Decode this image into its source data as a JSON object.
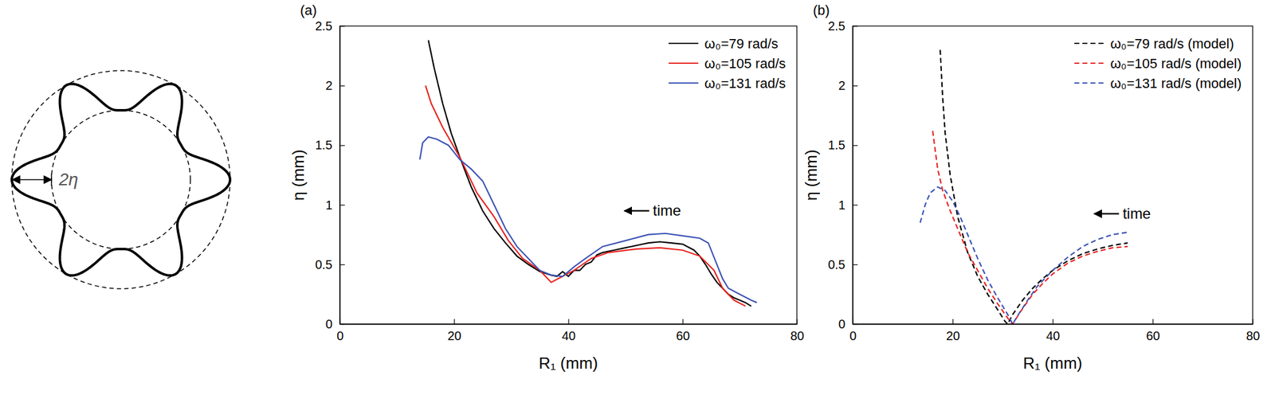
{
  "diagram": {
    "label": "2η"
  },
  "chart_data": [
    {
      "type": "line",
      "panel": "(a)",
      "x_label": "R₁ (mm)",
      "y_label": "η (mm)",
      "xlim": [
        0,
        80
      ],
      "xticks": [
        0,
        20,
        40,
        60,
        80
      ],
      "ylim": [
        0,
        2.5
      ],
      "yticks": [
        0,
        0.5,
        1,
        1.5,
        2,
        2.5
      ],
      "grid": false,
      "legend": "upper right",
      "annotations": [
        {
          "text": "time"
        }
      ],
      "series": [
        {
          "name": "ω₀=79 rad/s",
          "color": "#000000",
          "line_style": "solid",
          "x": [
            15.5,
            16.5,
            18,
            19.5,
            21,
            23,
            25,
            27,
            29,
            31,
            33,
            35,
            37,
            38,
            39,
            40,
            41,
            42,
            43,
            44,
            45,
            46,
            48,
            50,
            52,
            54,
            56,
            58,
            60,
            62,
            63,
            64,
            65,
            66,
            67,
            68,
            69,
            70,
            71,
            72
          ],
          "values": [
            2.38,
            2.15,
            1.85,
            1.6,
            1.4,
            1.15,
            0.95,
            0.8,
            0.68,
            0.57,
            0.5,
            0.44,
            0.41,
            0.4,
            0.44,
            0.4,
            0.45,
            0.45,
            0.5,
            0.52,
            0.58,
            0.6,
            0.62,
            0.64,
            0.66,
            0.68,
            0.69,
            0.68,
            0.67,
            0.62,
            0.57,
            0.5,
            0.42,
            0.35,
            0.3,
            0.25,
            0.22,
            0.2,
            0.18,
            0.15
          ]
        },
        {
          "name": "ω₀=105 rad/s",
          "color": "#e8231f",
          "line_style": "solid",
          "x": [
            15,
            16,
            18,
            21,
            24,
            27,
            29.5,
            32,
            35,
            37,
            39,
            41,
            44,
            47,
            52,
            56,
            60,
            63,
            65.5,
            67,
            69,
            71
          ],
          "values": [
            2.0,
            1.85,
            1.65,
            1.4,
            1.1,
            0.9,
            0.7,
            0.55,
            0.45,
            0.35,
            0.4,
            0.45,
            0.55,
            0.6,
            0.63,
            0.64,
            0.62,
            0.57,
            0.45,
            0.3,
            0.2,
            0.15
          ]
        },
        {
          "name": "ω₀=131 rad/s",
          "color": "#3a52b4",
          "line_style": "solid",
          "x": [
            14,
            14.5,
            15.5,
            17,
            19,
            21,
            23,
            25,
            27,
            29,
            31,
            33,
            35,
            37,
            39,
            41,
            43,
            46,
            50,
            54,
            57,
            60,
            63,
            64.5,
            66,
            67,
            68,
            70,
            72,
            73
          ],
          "values": [
            1.38,
            1.52,
            1.57,
            1.55,
            1.5,
            1.38,
            1.3,
            1.2,
            1.0,
            0.8,
            0.65,
            0.55,
            0.45,
            0.41,
            0.4,
            0.48,
            0.55,
            0.65,
            0.7,
            0.75,
            0.76,
            0.74,
            0.72,
            0.68,
            0.5,
            0.38,
            0.3,
            0.25,
            0.2,
            0.18
          ]
        }
      ]
    },
    {
      "type": "line",
      "panel": "(b)",
      "x_label": "R₁ (mm)",
      "y_label": "η (mm)",
      "xlim": [
        0,
        80
      ],
      "xticks": [
        0,
        20,
        40,
        60,
        80
      ],
      "ylim": [
        0,
        2.5
      ],
      "yticks": [
        0,
        0.5,
        1,
        1.5,
        2,
        2.5
      ],
      "grid": false,
      "legend": "upper right",
      "annotations": [
        {
          "text": "time"
        }
      ],
      "series": [
        {
          "name": "ω₀=79 rad/s (model)",
          "color": "#000000",
          "line_style": "dashed",
          "x": [
            17.5,
            18,
            18.5,
            19.5,
            21,
            23,
            25,
            27,
            29,
            30.5,
            31,
            32,
            34,
            36,
            38,
            40,
            43,
            46,
            49,
            52,
            55
          ],
          "values": [
            2.3,
            1.9,
            1.6,
            1.25,
            0.9,
            0.6,
            0.4,
            0.25,
            0.12,
            0.02,
            0.0,
            0.08,
            0.2,
            0.3,
            0.38,
            0.45,
            0.53,
            0.59,
            0.63,
            0.66,
            0.68
          ]
        },
        {
          "name": "ω₀=105 rad/s (model)",
          "color": "#e8231f",
          "line_style": "dashed",
          "x": [
            16,
            17,
            18,
            19.5,
            21,
            23,
            25,
            27,
            29,
            31,
            32,
            33.5,
            36,
            38,
            40,
            43,
            46,
            49,
            52,
            55
          ],
          "values": [
            1.62,
            1.3,
            1.12,
            0.95,
            0.8,
            0.6,
            0.45,
            0.3,
            0.17,
            0.05,
            0.0,
            0.1,
            0.25,
            0.34,
            0.42,
            0.51,
            0.57,
            0.61,
            0.64,
            0.65
          ]
        },
        {
          "name": "ω₀=131 rad/s (model)",
          "color": "#3a52b4",
          "line_style": "dashed",
          "x": [
            13.5,
            14.5,
            15.5,
            17,
            18.5,
            20,
            21.5,
            23,
            25,
            27,
            29,
            31,
            32,
            33,
            35,
            37,
            40,
            43,
            46,
            49,
            52,
            55
          ],
          "values": [
            0.85,
            1.0,
            1.1,
            1.15,
            1.12,
            1.03,
            0.9,
            0.75,
            0.55,
            0.37,
            0.22,
            0.08,
            0.0,
            0.07,
            0.2,
            0.32,
            0.45,
            0.56,
            0.65,
            0.71,
            0.75,
            0.77
          ]
        }
      ]
    }
  ]
}
